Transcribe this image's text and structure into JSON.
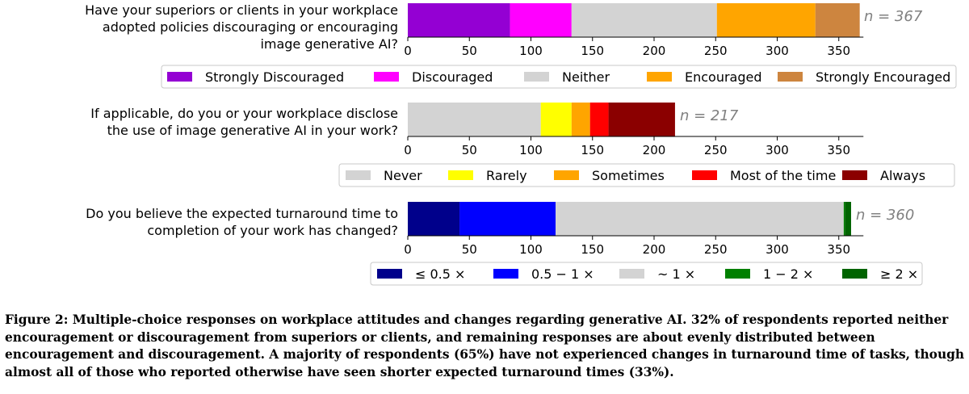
{
  "chart_data": [
    {
      "type": "bar",
      "stacked": true,
      "orientation": "horizontal",
      "question": [
        "Have your superiors or clients in your workplace",
        "adopted policies discouraging or encouraging",
        "image generative AI?"
      ],
      "n_label": "n = 367",
      "xlim": [
        0,
        370
      ],
      "xticks": [
        0,
        50,
        100,
        150,
        200,
        250,
        300,
        350
      ],
      "series": [
        {
          "name": "Strongly Discouraged",
          "value": 83,
          "color": "#9400d3"
        },
        {
          "name": "Discouraged",
          "value": 50,
          "color": "#ff00ff"
        },
        {
          "name": "Neither",
          "value": 118,
          "color": "#d3d3d3"
        },
        {
          "name": "Encouraged",
          "value": 80,
          "color": "#ffa500"
        },
        {
          "name": "Strongly Encouraged",
          "value": 36,
          "color": "#cd853f"
        }
      ]
    },
    {
      "type": "bar",
      "stacked": true,
      "orientation": "horizontal",
      "question": [
        "If applicable, do you or your workplace disclose",
        "the use of image generative AI in your work?"
      ],
      "n_label": "n = 217",
      "xlim": [
        0,
        370
      ],
      "xticks": [
        0,
        50,
        100,
        150,
        200,
        250,
        300,
        350
      ],
      "series": [
        {
          "name": "Never",
          "value": 108,
          "color": "#d3d3d3"
        },
        {
          "name": "Rarely",
          "value": 25,
          "color": "#ffff00"
        },
        {
          "name": "Sometimes",
          "value": 15,
          "color": "#ffa500"
        },
        {
          "name": "Most of the time",
          "value": 15,
          "color": "#ff0000"
        },
        {
          "name": "Always",
          "value": 54,
          "color": "#8b0000"
        }
      ]
    },
    {
      "type": "bar",
      "stacked": true,
      "orientation": "horizontal",
      "question": [
        "Do you believe the expected turnaround time to",
        "completion of your work has changed?"
      ],
      "n_label": "n = 360",
      "xlim": [
        0,
        370
      ],
      "xticks": [
        0,
        50,
        100,
        150,
        200,
        250,
        300,
        350
      ],
      "series": [
        {
          "name": "≤ 0.5 ×",
          "value": 42,
          "color": "#00008b"
        },
        {
          "name": "0.5 − 1 ×",
          "value": 78,
          "color": "#0000ff"
        },
        {
          "name": "~ 1 ×",
          "value": 234,
          "color": "#d3d3d3"
        },
        {
          "name": "1 − 2 ×",
          "value": 1,
          "color": "#008000"
        },
        {
          "name": "≥ 2 ×",
          "value": 5,
          "color": "#006400"
        }
      ]
    }
  ],
  "caption": "Figure 2: Multiple-choice responses on workplace attitudes and changes regarding generative AI. 32% of respondents reported neither encouragement or discouragement from superiors or clients, and remaining responses are about evenly distributed between encouragement and discouragement. A majority of respondents (65%) have not experienced changes in turnaround time of tasks, though almost all of those who reported otherwise have seen shorter expected turnaround times (33%)."
}
